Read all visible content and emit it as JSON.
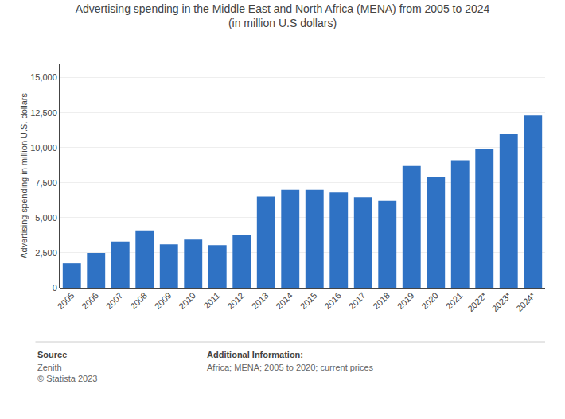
{
  "chart_data": {
    "type": "bar",
    "title": "Advertising spending in the Middle East and North Africa (MENA) from 2005 to 2024\n(in million U.S dollars)",
    "categories": [
      "2005",
      "2006",
      "2007",
      "2008",
      "2009",
      "2010",
      "2011",
      "2012",
      "2013",
      "2014",
      "2015",
      "2016",
      "2017",
      "2018",
      "2019",
      "2020",
      "2021",
      "2022*",
      "2023*",
      "2024*"
    ],
    "values": [
      1750,
      2500,
      3300,
      4100,
      3100,
      3450,
      3050,
      3800,
      6500,
      7000,
      7000,
      6800,
      6450,
      6200,
      8700,
      7950,
      9100,
      9900,
      11000,
      12300
    ],
    "color": "#2f72c4",
    "ylim": [
      0,
      16000
    ],
    "yticks": [
      0,
      {
        "value": 2500,
        "label": "2,500"
      },
      {
        "value": 5000,
        "label": "5,000"
      },
      {
        "value": 7500,
        "label": "7,500"
      },
      {
        "value": 10000,
        "label": "10,000"
      },
      {
        "value": 12500,
        "label": "12,500"
      },
      {
        "value": 15000,
        "label": "15,000"
      }
    ],
    "ylabel": "Advertising spending in million U.S. dollars",
    "grid": true,
    "annotations": [
      "Source",
      "Zenith\n© Statista 2023",
      "Additional Information:",
      "Africa; MENA; 2005 to 2020; current prices"
    ]
  }
}
